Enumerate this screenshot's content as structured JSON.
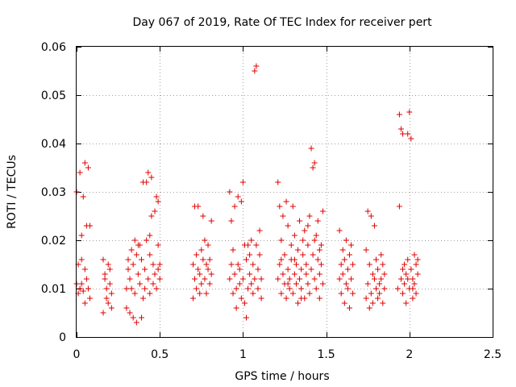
{
  "chart_data": {
    "type": "scatter",
    "title": "Day 067 of 2019, Rate Of TEC Index for receiver pert",
    "xlabel": "GPS time / hours",
    "ylabel": "ROTI / TECUs",
    "xlim": [
      0,
      2.5
    ],
    "ylim": [
      0,
      0.06
    ],
    "xticks": [
      0,
      0.5,
      1,
      1.5,
      2,
      2.5
    ],
    "xtick_labels": [
      "0",
      "0.5",
      "1",
      "1.5",
      "2",
      "2.5"
    ],
    "yticks": [
      0,
      0.01,
      0.02,
      0.03,
      0.04,
      0.05,
      0.06
    ],
    "ytick_labels": [
      "0",
      "0.01",
      "0.02",
      "0.03",
      "0.04",
      "0.05",
      "0.06"
    ],
    "grid": true,
    "marker": "+",
    "color": "#e00000",
    "series": [
      {
        "name": "ROTI",
        "points": [
          [
            0.0,
            0.03
          ],
          [
            0.01,
            0.009
          ],
          [
            0.01,
            0.015
          ],
          [
            0.02,
            0.01
          ],
          [
            0.02,
            0.034
          ],
          [
            0.03,
            0.021
          ],
          [
            0.03,
            0.011
          ],
          [
            0.04,
            0.0095
          ],
          [
            0.04,
            0.029
          ],
          [
            0.05,
            0.036
          ],
          [
            0.05,
            0.007
          ],
          [
            0.06,
            0.023
          ],
          [
            0.06,
            0.012
          ],
          [
            0.07,
            0.035
          ],
          [
            0.07,
            0.01
          ],
          [
            0.08,
            0.023
          ],
          [
            0.08,
            0.008
          ],
          [
            0.0,
            0.011
          ],
          [
            0.03,
            0.016
          ],
          [
            0.05,
            0.014
          ],
          [
            0.16,
            0.016
          ],
          [
            0.16,
            0.005
          ],
          [
            0.17,
            0.012
          ],
          [
            0.18,
            0.01
          ],
          [
            0.18,
            0.008
          ],
          [
            0.19,
            0.015
          ],
          [
            0.19,
            0.007
          ],
          [
            0.2,
            0.014
          ],
          [
            0.2,
            0.011
          ],
          [
            0.21,
            0.009
          ],
          [
            0.21,
            0.006
          ],
          [
            0.17,
            0.013
          ],
          [
            0.3,
            0.01
          ],
          [
            0.3,
            0.006
          ],
          [
            0.31,
            0.014
          ],
          [
            0.32,
            0.012
          ],
          [
            0.32,
            0.005
          ],
          [
            0.33,
            0.018
          ],
          [
            0.33,
            0.01
          ],
          [
            0.34,
            0.004
          ],
          [
            0.34,
            0.015
          ],
          [
            0.35,
            0.02
          ],
          [
            0.35,
            0.009
          ],
          [
            0.36,
            0.003
          ],
          [
            0.36,
            0.017
          ],
          [
            0.37,
            0.013
          ],
          [
            0.38,
            0.011
          ],
          [
            0.38,
            0.019
          ],
          [
            0.39,
            0.004
          ],
          [
            0.39,
            0.016
          ],
          [
            0.4,
            0.032
          ],
          [
            0.4,
            0.008
          ],
          [
            0.41,
            0.014
          ],
          [
            0.41,
            0.01
          ],
          [
            0.42,
            0.032
          ],
          [
            0.42,
            0.02
          ],
          [
            0.43,
            0.034
          ],
          [
            0.43,
            0.012
          ],
          [
            0.44,
            0.009
          ],
          [
            0.44,
            0.017
          ],
          [
            0.45,
            0.025
          ],
          [
            0.45,
            0.033
          ],
          [
            0.46,
            0.011
          ],
          [
            0.46,
            0.015
          ],
          [
            0.47,
            0.026
          ],
          [
            0.47,
            0.013
          ],
          [
            0.48,
            0.029
          ],
          [
            0.48,
            0.01
          ],
          [
            0.49,
            0.019
          ],
          [
            0.49,
            0.028
          ],
          [
            0.5,
            0.012
          ],
          [
            0.5,
            0.015
          ],
          [
            0.31,
            0.016
          ],
          [
            0.37,
            0.019
          ],
          [
            0.44,
            0.021
          ],
          [
            0.49,
            0.014
          ],
          [
            0.7,
            0.015
          ],
          [
            0.7,
            0.008
          ],
          [
            0.71,
            0.027
          ],
          [
            0.71,
            0.012
          ],
          [
            0.72,
            0.01
          ],
          [
            0.72,
            0.017
          ],
          [
            0.73,
            0.014
          ],
          [
            0.73,
            0.027
          ],
          [
            0.74,
            0.009
          ],
          [
            0.74,
            0.013
          ],
          [
            0.75,
            0.018
          ],
          [
            0.75,
            0.011
          ],
          [
            0.76,
            0.016
          ],
          [
            0.76,
            0.025
          ],
          [
            0.77,
            0.02
          ],
          [
            0.77,
            0.012
          ],
          [
            0.78,
            0.015
          ],
          [
            0.78,
            0.009
          ],
          [
            0.79,
            0.019
          ],
          [
            0.79,
            0.014
          ],
          [
            0.8,
            0.011
          ],
          [
            0.8,
            0.016
          ],
          [
            0.81,
            0.013
          ],
          [
            0.81,
            0.024
          ],
          [
            0.92,
            0.03
          ],
          [
            0.92,
            0.012
          ],
          [
            0.93,
            0.015
          ],
          [
            0.93,
            0.024
          ],
          [
            0.94,
            0.009
          ],
          [
            0.94,
            0.018
          ],
          [
            0.95,
            0.027
          ],
          [
            0.95,
            0.013
          ],
          [
            0.96,
            0.01
          ],
          [
            0.96,
            0.006
          ],
          [
            0.97,
            0.029
          ],
          [
            0.97,
            0.015
          ],
          [
            0.98,
            0.011
          ],
          [
            0.98,
            0.014
          ],
          [
            0.99,
            0.028
          ],
          [
            0.99,
            0.008
          ],
          [
            1.0,
            0.032
          ],
          [
            1.0,
            0.012
          ],
          [
            1.01,
            0.019
          ],
          [
            1.01,
            0.007
          ],
          [
            1.02,
            0.004
          ],
          [
            1.02,
            0.016
          ],
          [
            1.03,
            0.019
          ],
          [
            1.03,
            0.01
          ],
          [
            1.04,
            0.013
          ],
          [
            1.04,
            0.017
          ],
          [
            1.05,
            0.011
          ],
          [
            1.05,
            0.02
          ],
          [
            1.06,
            0.009
          ],
          [
            1.06,
            0.015
          ],
          [
            1.07,
            0.055
          ],
          [
            1.07,
            0.012
          ],
          [
            1.08,
            0.056
          ],
          [
            1.08,
            0.019
          ],
          [
            1.09,
            0.01
          ],
          [
            1.09,
            0.014
          ],
          [
            1.1,
            0.017
          ],
          [
            1.1,
            0.022
          ],
          [
            1.11,
            0.012
          ],
          [
            1.11,
            0.008
          ],
          [
            1.21,
            0.032
          ],
          [
            1.21,
            0.012
          ],
          [
            1.22,
            0.015
          ],
          [
            1.22,
            0.027
          ],
          [
            1.23,
            0.009
          ],
          [
            1.23,
            0.02
          ],
          [
            1.24,
            0.013
          ],
          [
            1.24,
            0.025
          ],
          [
            1.25,
            0.011
          ],
          [
            1.25,
            0.017
          ],
          [
            1.26,
            0.028
          ],
          [
            1.26,
            0.008
          ],
          [
            1.27,
            0.023
          ],
          [
            1.27,
            0.014
          ],
          [
            1.28,
            0.012
          ],
          [
            1.28,
            0.01
          ],
          [
            1.29,
            0.019
          ],
          [
            1.29,
            0.016
          ],
          [
            1.3,
            0.027
          ],
          [
            1.3,
            0.009
          ],
          [
            1.31,
            0.013
          ],
          [
            1.31,
            0.021
          ],
          [
            1.32,
            0.011
          ],
          [
            1.32,
            0.015
          ],
          [
            1.33,
            0.018
          ],
          [
            1.33,
            0.007
          ],
          [
            1.34,
            0.024
          ],
          [
            1.34,
            0.012
          ],
          [
            1.35,
            0.014
          ],
          [
            1.35,
            0.01
          ],
          [
            1.36,
            0.02
          ],
          [
            1.36,
            0.017
          ],
          [
            1.37,
            0.008
          ],
          [
            1.37,
            0.022
          ],
          [
            1.38,
            0.013
          ],
          [
            1.38,
            0.015
          ],
          [
            1.39,
            0.019
          ],
          [
            1.39,
            0.011
          ],
          [
            1.4,
            0.025
          ],
          [
            1.4,
            0.009
          ],
          [
            1.41,
            0.039
          ],
          [
            1.41,
            0.014
          ],
          [
            1.42,
            0.035
          ],
          [
            1.42,
            0.017
          ],
          [
            1.43,
            0.036
          ],
          [
            1.43,
            0.012
          ],
          [
            1.44,
            0.021
          ],
          [
            1.44,
            0.01
          ],
          [
            1.45,
            0.016
          ],
          [
            1.45,
            0.024
          ],
          [
            1.46,
            0.013
          ],
          [
            1.46,
            0.008
          ],
          [
            1.47,
            0.019
          ],
          [
            1.47,
            0.015
          ],
          [
            1.48,
            0.026
          ],
          [
            1.48,
            0.011
          ],
          [
            1.23,
            0.016
          ],
          [
            1.27,
            0.011
          ],
          [
            1.31,
            0.016
          ],
          [
            1.35,
            0.008
          ],
          [
            1.39,
            0.023
          ],
          [
            1.43,
            0.02
          ],
          [
            1.46,
            0.018
          ],
          [
            1.58,
            0.022
          ],
          [
            1.58,
            0.012
          ],
          [
            1.59,
            0.015
          ],
          [
            1.59,
            0.009
          ],
          [
            1.6,
            0.018
          ],
          [
            1.6,
            0.013
          ],
          [
            1.61,
            0.007
          ],
          [
            1.61,
            0.016
          ],
          [
            1.62,
            0.011
          ],
          [
            1.62,
            0.02
          ],
          [
            1.63,
            0.014
          ],
          [
            1.63,
            0.01
          ],
          [
            1.64,
            0.017
          ],
          [
            1.64,
            0.006
          ],
          [
            1.65,
            0.012
          ],
          [
            1.65,
            0.019
          ],
          [
            1.66,
            0.009
          ],
          [
            1.66,
            0.015
          ],
          [
            1.74,
            0.018
          ],
          [
            1.74,
            0.008
          ],
          [
            1.75,
            0.026
          ],
          [
            1.75,
            0.011
          ],
          [
            1.76,
            0.006
          ],
          [
            1.76,
            0.015
          ],
          [
            1.77,
            0.025
          ],
          [
            1.77,
            0.009
          ],
          [
            1.78,
            0.013
          ],
          [
            1.78,
            0.007
          ],
          [
            1.79,
            0.023
          ],
          [
            1.79,
            0.012
          ],
          [
            1.8,
            0.01
          ],
          [
            1.8,
            0.016
          ],
          [
            1.81,
            0.008
          ],
          [
            1.81,
            0.014
          ],
          [
            1.82,
            0.011
          ],
          [
            1.82,
            0.009
          ],
          [
            1.83,
            0.017
          ],
          [
            1.83,
            0.012
          ],
          [
            1.84,
            0.007
          ],
          [
            1.84,
            0.015
          ],
          [
            1.85,
            0.01
          ],
          [
            1.85,
            0.013
          ],
          [
            1.94,
            0.046
          ],
          [
            1.94,
            0.027
          ],
          [
            1.95,
            0.043
          ],
          [
            1.95,
            0.012
          ],
          [
            1.96,
            0.042
          ],
          [
            1.96,
            0.009
          ],
          [
            1.97,
            0.015
          ],
          [
            1.97,
            0.011
          ],
          [
            1.98,
            0.013
          ],
          [
            1.98,
            0.007
          ],
          [
            1.99,
            0.042
          ],
          [
            1.99,
            0.016
          ],
          [
            2.0,
            0.0465
          ],
          [
            2.0,
            0.01
          ],
          [
            2.01,
            0.041
          ],
          [
            2.01,
            0.014
          ],
          [
            2.02,
            0.012
          ],
          [
            2.02,
            0.008
          ],
          [
            2.03,
            0.017
          ],
          [
            2.03,
            0.011
          ],
          [
            2.04,
            0.015
          ],
          [
            2.04,
            0.009
          ],
          [
            2.05,
            0.013
          ],
          [
            2.05,
            0.016
          ],
          [
            1.93,
            0.01
          ],
          [
            1.96,
            0.014
          ],
          [
            1.99,
            0.012
          ],
          [
            2.02,
            0.01
          ]
        ]
      }
    ]
  }
}
